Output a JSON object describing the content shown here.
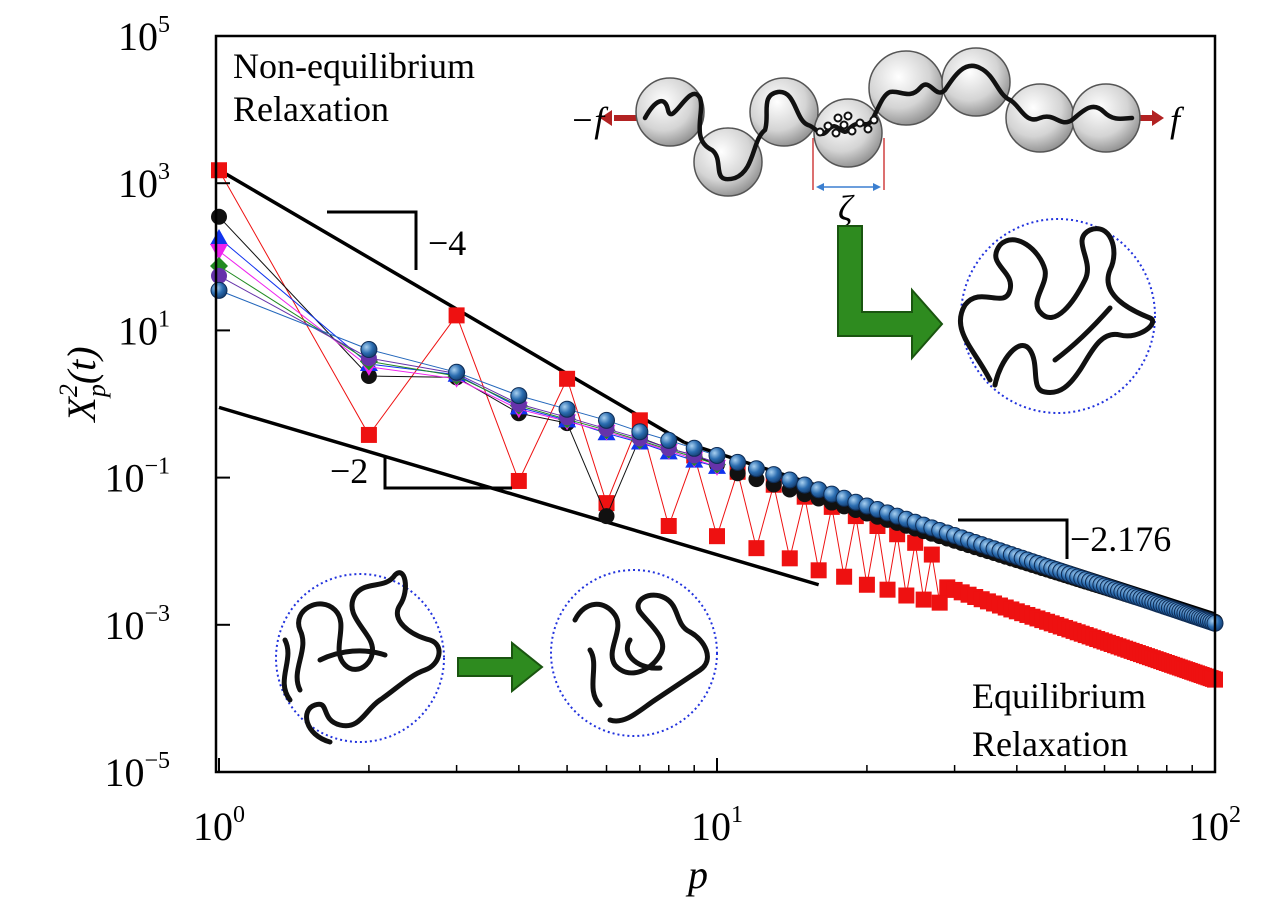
{
  "chart_data": {
    "type": "scatter",
    "x_scale": "log",
    "y_scale": "log",
    "xlim": [
      1,
      100
    ],
    "ylim": [
      1e-05,
      100000
    ],
    "xlabel": "p",
    "ylabel": "X_p^2(t)",
    "x_ticks": [
      {
        "value": 1,
        "base": "10",
        "exp": "0"
      },
      {
        "value": 10,
        "base": "10",
        "exp": "1"
      },
      {
        "value": 100,
        "base": "10",
        "exp": "2"
      }
    ],
    "y_ticks": [
      {
        "value": 100000,
        "base": "10",
        "exp": "5"
      },
      {
        "value": 1000,
        "base": "10",
        "exp": "3"
      },
      {
        "value": 10,
        "base": "10",
        "exp": "1"
      },
      {
        "value": 0.1,
        "base": "10",
        "exp": "−1"
      },
      {
        "value": 0.001,
        "base": "10",
        "exp": "−3"
      },
      {
        "value": 1e-05,
        "base": "10",
        "exp": "−5"
      }
    ],
    "grid": false,
    "series": [
      {
        "color": "#ee1111",
        "marker": "square",
        "connected": true,
        "points": [
          [
            1,
            1500
          ],
          [
            2,
            0.38
          ],
          [
            3,
            16
          ],
          [
            4,
            0.09
          ],
          [
            5,
            2.2
          ],
          [
            6,
            0.045
          ],
          [
            7,
            0.6
          ],
          [
            8,
            0.022
          ],
          [
            9,
            0.2
          ],
          [
            10,
            0.016
          ],
          [
            11,
            0.12
          ],
          [
            12,
            0.011
          ],
          [
            13,
            0.08
          ],
          [
            14,
            0.008
          ],
          [
            15,
            0.055
          ],
          [
            16,
            0.0055
          ],
          [
            17,
            0.04
          ],
          [
            18,
            0.0045
          ],
          [
            19,
            0.03
          ],
          [
            20,
            0.0035
          ],
          [
            21,
            0.022
          ],
          [
            22,
            0.003
          ],
          [
            23,
            0.017
          ],
          [
            24,
            0.0025
          ],
          [
            25,
            0.013
          ],
          [
            26,
            0.0022
          ],
          [
            27,
            0.009
          ],
          [
            28,
            0.002
          ]
        ],
        "power_law_tail": {
          "x_start": 28,
          "x_end": 100,
          "y_start": 0.0035,
          "y_end": 0.00018
        }
      },
      {
        "color": "#111111",
        "marker": "circle",
        "connected": true,
        "points": [
          [
            1,
            350
          ],
          [
            2,
            2.4
          ],
          [
            3,
            2.3
          ],
          [
            4,
            0.75
          ],
          [
            5,
            0.55
          ],
          [
            6,
            0.03
          ],
          [
            7,
            0.35
          ],
          [
            8,
            0.25
          ],
          [
            9,
            0.2
          ],
          [
            10,
            0.15
          ]
        ],
        "power_law_tail": {
          "x_start": 10,
          "x_end": 100,
          "y_start": 0.14,
          "y_end": 0.0011
        }
      },
      {
        "color": "#1133ee",
        "marker": "triangle",
        "connected": true,
        "points": [
          [
            1,
            180
          ],
          [
            2,
            3.5
          ],
          [
            3,
            2.5
          ],
          [
            4,
            0.9
          ],
          [
            5,
            0.6
          ],
          [
            6,
            0.4
          ],
          [
            7,
            0.3
          ],
          [
            8,
            0.22
          ],
          [
            9,
            0.17
          ],
          [
            10,
            0.14
          ]
        ]
      },
      {
        "color": "#ee22ee",
        "marker": "triangle-down",
        "connected": true,
        "points": [
          [
            1,
            120
          ],
          [
            2,
            3.2
          ],
          [
            3,
            2.2
          ],
          [
            4,
            0.85
          ],
          [
            5,
            0.58
          ],
          [
            6,
            0.42
          ],
          [
            7,
            0.31
          ],
          [
            8,
            0.23
          ],
          [
            9,
            0.18
          ],
          [
            10,
            0.14
          ]
        ]
      },
      {
        "color": "#228b22",
        "marker": "diamond",
        "connected": true,
        "points": [
          [
            1,
            75
          ],
          [
            2,
            3.8
          ],
          [
            3,
            2.4
          ],
          [
            4,
            0.95
          ],
          [
            5,
            0.62
          ],
          [
            6,
            0.44
          ],
          [
            7,
            0.32
          ],
          [
            8,
            0.24
          ],
          [
            9,
            0.19
          ],
          [
            10,
            0.15
          ]
        ]
      },
      {
        "color": "#6633aa",
        "marker": "circle",
        "connected": true,
        "points": [
          [
            1,
            55
          ],
          [
            2,
            4.2
          ],
          [
            3,
            2.6
          ],
          [
            4,
            1.0
          ],
          [
            5,
            0.66
          ],
          [
            6,
            0.46
          ],
          [
            7,
            0.34
          ],
          [
            8,
            0.25
          ],
          [
            9,
            0.2
          ],
          [
            10,
            0.16
          ]
        ]
      },
      {
        "color": "#2266bb",
        "marker": "sphere",
        "connected": true,
        "points": [
          [
            1,
            35
          ],
          [
            2,
            5.5
          ],
          [
            3,
            2.7
          ],
          [
            4,
            1.3
          ],
          [
            5,
            0.85
          ],
          [
            6,
            0.6
          ],
          [
            7,
            0.42
          ],
          [
            8,
            0.32
          ],
          [
            9,
            0.25
          ],
          [
            10,
            0.2
          ]
        ],
        "power_law_tail": {
          "x_start": 10,
          "x_end": 100,
          "y_start": 0.2,
          "y_end": 0.00105
        }
      }
    ],
    "guide_lines": [
      {
        "slope_label": "−4",
        "from": [
          1.02,
          1400
        ],
        "to": [
          8.6,
          0.3
        ]
      },
      {
        "slope_label": "−2",
        "from": [
          1.0,
          0.9
        ],
        "to": [
          16,
          0.0035
        ]
      },
      {
        "slope_label": "−2.176",
        "from": [
          8.6,
          0.3
        ],
        "to": [
          100,
          0.0014
        ]
      }
    ],
    "annotations": {
      "top_left": [
        "Non-equilibrium",
        "Relaxation"
      ],
      "bottom_right": [
        "Equilibrium",
        "Relaxation"
      ],
      "force_left": "−f",
      "force_right": "f",
      "blob_size": "ζ"
    }
  }
}
